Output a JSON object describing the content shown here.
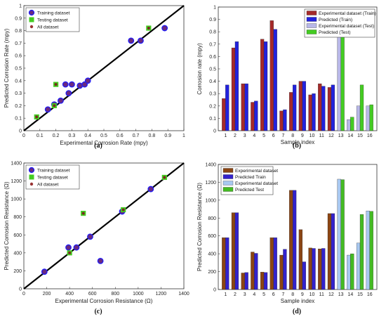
{
  "chart_data": [
    {
      "type": "scatter",
      "panel": "a",
      "caption": "(a)",
      "xlabel": "Experimental Corrosion Rate (mpy)",
      "ylabel": "Predicted Corrosion Rate (mpy)",
      "xlim": [
        0,
        1
      ],
      "ylim": [
        0,
        1
      ],
      "xticks": [
        "0",
        "0.1",
        "0.2",
        "0.3",
        "0.4",
        "0.5",
        "0.6",
        "0.7",
        "0.8",
        "0.9",
        "1"
      ],
      "yticks": [
        "0",
        "0.1",
        "0.2",
        "0.3",
        "0.4",
        "0.5",
        "0.6",
        "0.7",
        "0.8",
        "0.9",
        "1"
      ],
      "legend_position": "top-left",
      "series": [
        {
          "name": "Training dataset",
          "color": "#1a1aff",
          "marker": "circle",
          "points": [
            [
              0.15,
              0.17
            ],
            [
              0.19,
              0.21
            ],
            [
              0.23,
              0.24
            ],
            [
              0.26,
              0.37
            ],
            [
              0.28,
              0.3
            ],
            [
              0.3,
              0.37
            ],
            [
              0.35,
              0.36
            ],
            [
              0.38,
              0.37
            ],
            [
              0.4,
              0.4
            ],
            [
              0.67,
              0.72
            ],
            [
              0.73,
              0.72
            ],
            [
              0.88,
              0.82
            ]
          ]
        },
        {
          "name": "Testing  dataset",
          "color": "#44cc22",
          "marker": "square",
          "points": [
            [
              0.08,
              0.11
            ],
            [
              0.19,
              0.2
            ],
            [
              0.2,
              0.37
            ],
            [
              0.78,
              0.82
            ]
          ]
        },
        {
          "name": "All dataset",
          "color": "#993333",
          "marker": "dot",
          "points": []
        }
      ]
    },
    {
      "type": "bar",
      "panel": "b",
      "caption": "(b)",
      "xlabel": "Sample index",
      "ylabel": "Corrosion rate (mpy)",
      "ylim": [
        0,
        1
      ],
      "yticks": [
        "0",
        "0.1",
        "0.2",
        "0.3",
        "0.4",
        "0.5",
        "0.6",
        "0.7",
        "0.8",
        "0.9",
        "1"
      ],
      "categories": [
        "1",
        "2",
        "3",
        "4",
        "5",
        "6",
        "7",
        "8",
        "9",
        "10",
        "11",
        "12",
        "13",
        "14",
        "15",
        "16"
      ],
      "legend_position": "top-right",
      "series": [
        {
          "name": "Experimental dataset (Train)",
          "color": "#a52a2a",
          "values": [
            0.26,
            0.67,
            0.38,
            0.23,
            0.74,
            0.89,
            0.16,
            0.31,
            0.4,
            0.29,
            0.38,
            0.35,
            null,
            null,
            null,
            null
          ]
        },
        {
          "name": "Predicted (Train)",
          "color": "#2222dd",
          "values": [
            0.37,
            0.72,
            0.38,
            0.24,
            0.72,
            0.82,
            0.17,
            0.37,
            0.4,
            0.3,
            0.36,
            0.37,
            null,
            null,
            null,
            null
          ]
        },
        {
          "name": "Experimental dataset (Test)",
          "color": "#b8b8e8",
          "values": [
            null,
            null,
            null,
            null,
            null,
            null,
            null,
            null,
            null,
            null,
            null,
            null,
            0.78,
            0.09,
            0.2,
            0.2
          ]
        },
        {
          "name": "Predicted (Test)",
          "color": "#44cc22",
          "values": [
            null,
            null,
            null,
            null,
            null,
            null,
            null,
            null,
            null,
            null,
            null,
            null,
            0.82,
            0.11,
            0.37,
            0.21
          ]
        }
      ]
    },
    {
      "type": "scatter",
      "panel": "c",
      "caption": "(c)",
      "xlabel": "Experimental Corrosion Resistance (Ω)",
      "ylabel": "Predicted Corrosion Resistance (Ω)",
      "xlim": [
        0,
        1400
      ],
      "ylim": [
        0,
        1400
      ],
      "xticks": [
        "0",
        "200",
        "400",
        "600",
        "800",
        "1000",
        "1200",
        "1400"
      ],
      "yticks": [
        "0",
        "200",
        "400",
        "600",
        "800",
        "1000",
        "1200",
        "1400"
      ],
      "legend_position": "top-left",
      "series": [
        {
          "name": "Training dataset",
          "color": "#1a1aff",
          "marker": "circle",
          "points": [
            [
              180,
              190
            ],
            [
              390,
              460
            ],
            [
              460,
              460
            ],
            [
              580,
              580
            ],
            [
              670,
              310
            ],
            [
              860,
              860
            ],
            [
              1110,
              1110
            ]
          ]
        },
        {
          "name": "Testing  dataset",
          "color": "#44cc22",
          "marker": "square",
          "points": [
            [
              400,
              400
            ],
            [
              520,
              840
            ],
            [
              870,
              880
            ],
            [
              1230,
              1240
            ]
          ]
        },
        {
          "name": "All dataset",
          "color": "#993333",
          "marker": "dot",
          "points": []
        }
      ]
    },
    {
      "type": "bar",
      "panel": "d",
      "caption": "(d)",
      "xlabel": "Sample index",
      "ylabel": "Predicted Corrosion Resistance (Ω)",
      "ylim": [
        0,
        1400
      ],
      "yticks": [
        "0",
        "200",
        "400",
        "600",
        "800",
        "1000",
        "1200",
        "1400"
      ],
      "categories": [
        "1",
        "2",
        "3",
        "4",
        "5",
        "6",
        "7",
        "8",
        "9",
        "10",
        "11",
        "12",
        "13",
        "14",
        "15",
        "16"
      ],
      "legend_position": "top-left",
      "series": [
        {
          "name": "Experimental dataset",
          "color": "#8b4513",
          "values": [
            580,
            860,
            185,
            420,
            195,
            580,
            385,
            1110,
            670,
            465,
            455,
            850,
            null,
            null,
            null,
            null
          ]
        },
        {
          "name": "Predicted Train",
          "color": "#3322cc",
          "values": [
            580,
            860,
            190,
            405,
            190,
            580,
            450,
            1110,
            310,
            460,
            460,
            850,
            null,
            null,
            null,
            null
          ]
        },
        {
          "name": "Experimental dataset",
          "color": "#a8c8f0",
          "values": [
            null,
            null,
            null,
            null,
            null,
            null,
            null,
            null,
            null,
            null,
            null,
            null,
            1235,
            385,
            520,
            880
          ]
        },
        {
          "name": "Predicted Test",
          "color": "#44bb22",
          "values": [
            null,
            null,
            null,
            null,
            null,
            null,
            null,
            null,
            null,
            null,
            null,
            null,
            1230,
            400,
            840,
            875
          ]
        }
      ]
    }
  ]
}
